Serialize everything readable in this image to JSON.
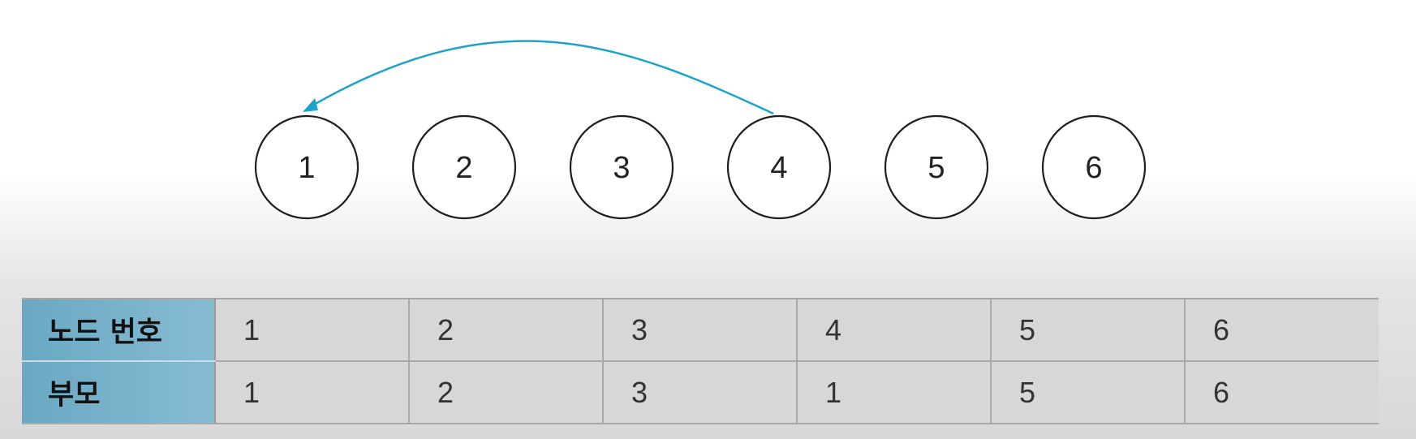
{
  "nodes": [
    "1",
    "2",
    "3",
    "4",
    "5",
    "6"
  ],
  "arrow": {
    "from": "4",
    "to": "1",
    "color": "#1ba3c9"
  },
  "table": {
    "header_color": "#7bb3cc",
    "rows": [
      {
        "label": "노드 번호",
        "values": [
          "1",
          "2",
          "3",
          "4",
          "5",
          "6"
        ]
      },
      {
        "label": "부모",
        "values": [
          "1",
          "2",
          "3",
          "1",
          "5",
          "6"
        ]
      }
    ]
  }
}
